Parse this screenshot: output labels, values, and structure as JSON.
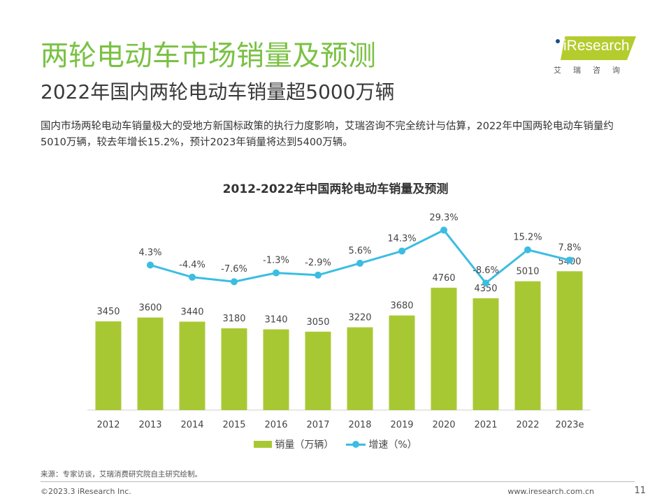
{
  "header": {
    "title": "两轮电动车市场销量及预测",
    "subtitle": "2022年国内两轮电动车销量超5000万辆",
    "description": "国内市场两轮电动车销量极大的受地方新国标政策的执行力度影响，艾瑞咨询不完全统计与估算，2022年中国两轮电动车销量约5010万辆，较去年增长15.2%，预计2023年销量将达到5400万辆。"
  },
  "logo": {
    "brand": "iResearch",
    "cn": "艾瑞咨询",
    "colors": {
      "box": "#b5cc2e",
      "dot": "#1a4c8a"
    }
  },
  "chart_data": {
    "type": "bar+line",
    "title": "2012-2022年中国两轮电动车销量及预测",
    "categories": [
      "2012",
      "2013",
      "2014",
      "2015",
      "2016",
      "2017",
      "2018",
      "2019",
      "2020",
      "2021",
      "2022",
      "2023e"
    ],
    "series": [
      {
        "name": "销量（万辆）",
        "type": "bar",
        "color": "#a8c833",
        "values": [
          3450,
          3600,
          3440,
          3180,
          3140,
          3050,
          3220,
          3680,
          4760,
          4350,
          5010,
          5400
        ],
        "labels": [
          "3450",
          "3600",
          "3440",
          "3180",
          "3140",
          "3050",
          "3220",
          "3680",
          "4760",
          "4350",
          "5010",
          "5400"
        ]
      },
      {
        "name": "增速（%）",
        "type": "line",
        "color": "#3bbde2",
        "values": [
          null,
          4.3,
          -4.4,
          -7.6,
          -1.3,
          -2.9,
          5.6,
          14.3,
          29.3,
          -8.6,
          15.2,
          7.8
        ],
        "labels": [
          "",
          "4.3%",
          "-4.4%",
          "-7.6%",
          "-1.3%",
          "-2.9%",
          "5.6%",
          "14.3%",
          "29.3%",
          "-8.6%",
          "15.2%",
          "7.8%"
        ]
      }
    ],
    "bar_ylim": [
      0,
      6000
    ],
    "line_ylim": [
      -40,
      40
    ],
    "grid": false,
    "legend": "bottom-center"
  },
  "footer": {
    "source": "来源：专家访谈，艾瑞消费研究院自主研究绘制。",
    "copyright": "©2023.3 iResearch Inc.",
    "website": "www.iresearch.com.cn",
    "page": "11"
  }
}
